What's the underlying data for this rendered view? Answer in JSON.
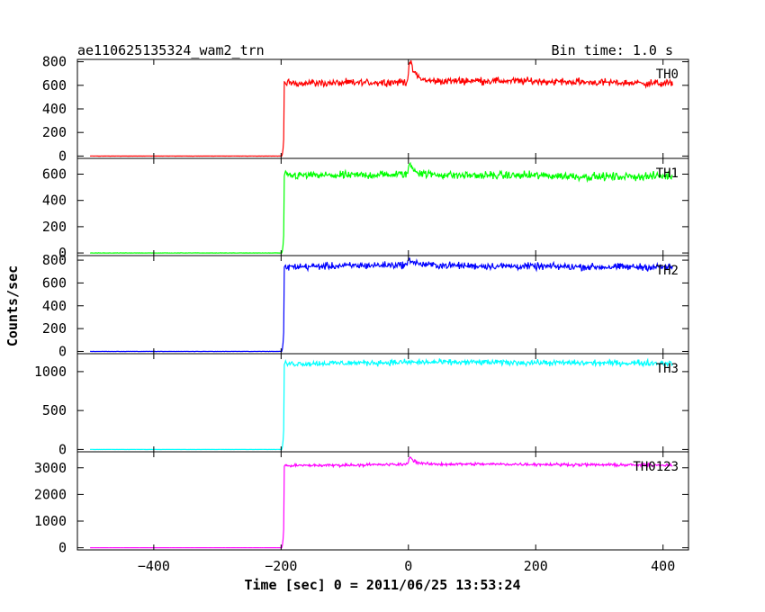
{
  "header": {
    "title": "ae110625135324_wam2_trn",
    "bin_time": "Bin time: 1.0 s"
  },
  "chart_data": {
    "type": "line",
    "xlabel": "Time [sec] 0 = 2011/06/25 13:53:24",
    "ylabel": "Counts/sec",
    "xlim": [
      -520,
      440
    ],
    "x_ticks": [
      -400,
      -200,
      0,
      200,
      400
    ],
    "x_tick_labels": [
      "−400",
      "−200",
      "0",
      "200",
      "400"
    ],
    "data_x_range": [
      -500,
      415
    ],
    "onset_x": -195,
    "panels": [
      {
        "name": "TH0",
        "color": "#ff0000",
        "ylim": [
          -20,
          820
        ],
        "y_ticks": [
          0,
          200,
          400,
          600,
          800
        ],
        "y_tick_labels": [
          "0",
          "200",
          "400",
          "600",
          "800"
        ],
        "pre_level": 0,
        "levels": [
          [
            -195,
            620
          ],
          [
            -100,
            620
          ],
          [
            0,
            630
          ],
          [
            100,
            640
          ],
          [
            200,
            635
          ],
          [
            300,
            625
          ],
          [
            415,
            615
          ]
        ],
        "noise": 25,
        "spike": {
          "x": 2,
          "peak": 810
        }
      },
      {
        "name": "TH1",
        "color": "#00ff00",
        "ylim": [
          -20,
          720
        ],
        "y_ticks": [
          0,
          200,
          400,
          600
        ],
        "y_tick_labels": [
          "0",
          "200",
          "400",
          "600"
        ],
        "pre_level": 0,
        "levels": [
          [
            -195,
            590
          ],
          [
            -100,
            590
          ],
          [
            0,
            600
          ],
          [
            100,
            590
          ],
          [
            200,
            590
          ],
          [
            300,
            580
          ],
          [
            415,
            585
          ]
        ],
        "noise": 25,
        "spike": {
          "x": 2,
          "peak": 680
        }
      },
      {
        "name": "TH2",
        "color": "#0000ff",
        "ylim": [
          -20,
          840
        ],
        "y_ticks": [
          0,
          200,
          400,
          600,
          800
        ],
        "y_tick_labels": [
          "0",
          "200",
          "400",
          "600",
          "800"
        ],
        "pre_level": 0,
        "levels": [
          [
            -195,
            740
          ],
          [
            -100,
            750
          ],
          [
            0,
            760
          ],
          [
            100,
            750
          ],
          [
            200,
            745
          ],
          [
            300,
            740
          ],
          [
            415,
            740
          ]
        ],
        "noise": 25,
        "spike": {
          "x": 2,
          "peak": 810
        }
      },
      {
        "name": "TH3",
        "color": "#00ffff",
        "ylim": [
          -30,
          1230
        ],
        "y_ticks": [
          0,
          500,
          1000
        ],
        "y_tick_labels": [
          "0",
          "500",
          "1000"
        ],
        "pre_level": 0,
        "levels": [
          [
            -195,
            1100
          ],
          [
            -100,
            1110
          ],
          [
            0,
            1120
          ],
          [
            100,
            1120
          ],
          [
            200,
            1115
          ],
          [
            300,
            1110
          ],
          [
            415,
            1110
          ]
        ],
        "noise": 30,
        "spike": null
      },
      {
        "name": "TH0123",
        "color": "#ff00ff",
        "ylim": [
          -80,
          3600
        ],
        "y_ticks": [
          0,
          1000,
          2000,
          3000
        ],
        "y_tick_labels": [
          "0",
          "1000",
          "2000",
          "3000"
        ],
        "pre_level": 0,
        "levels": [
          [
            -195,
            3080
          ],
          [
            -100,
            3100
          ],
          [
            0,
            3130
          ],
          [
            100,
            3140
          ],
          [
            200,
            3130
          ],
          [
            300,
            3110
          ],
          [
            415,
            3100
          ]
        ],
        "noise": 45,
        "spike": {
          "x": 2,
          "peak": 3420
        }
      }
    ]
  }
}
